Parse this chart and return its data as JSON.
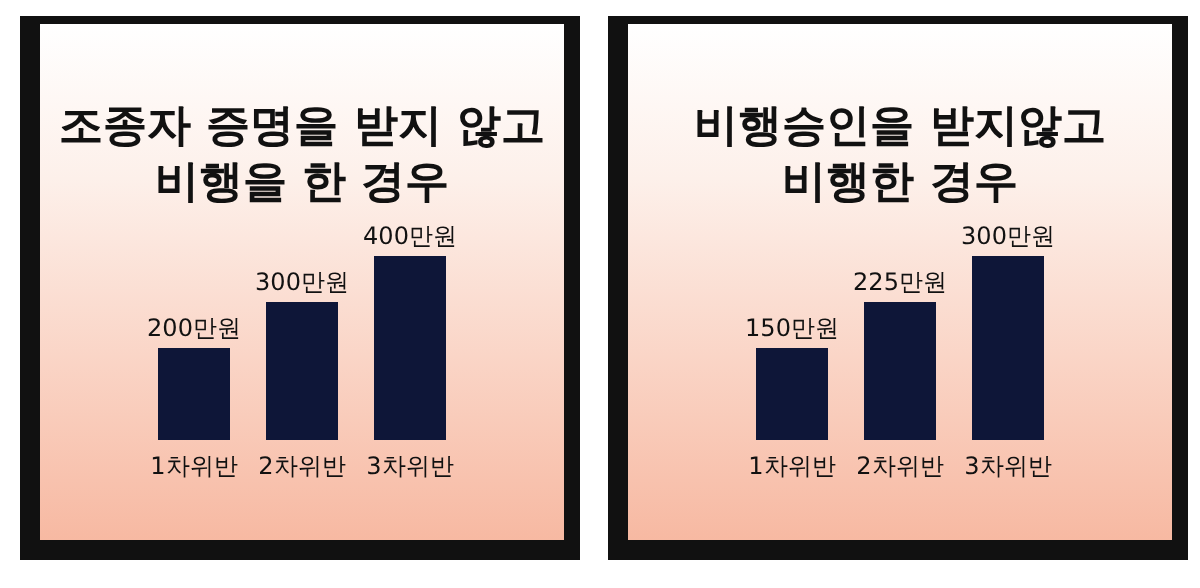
{
  "chart_data": [
    {
      "type": "bar",
      "title": "조종자 증명을 받지 않고\n비행을 한 경우",
      "categories": [
        "1차위반",
        "2차위반",
        "3차위반"
      ],
      "values": [
        200,
        300,
        400
      ],
      "value_labels": [
        "200만원",
        "300만원",
        "400만원"
      ],
      "color": "#0e1638"
    },
    {
      "type": "bar",
      "title": "비행승인을 받지않고\n비행한 경우",
      "categories": [
        "1차위반",
        "2차위반",
        "3차위반"
      ],
      "values": [
        150,
        225,
        300
      ],
      "value_labels": [
        "150만원",
        "225만원",
        "300만원"
      ],
      "color": "#0e1638"
    }
  ]
}
